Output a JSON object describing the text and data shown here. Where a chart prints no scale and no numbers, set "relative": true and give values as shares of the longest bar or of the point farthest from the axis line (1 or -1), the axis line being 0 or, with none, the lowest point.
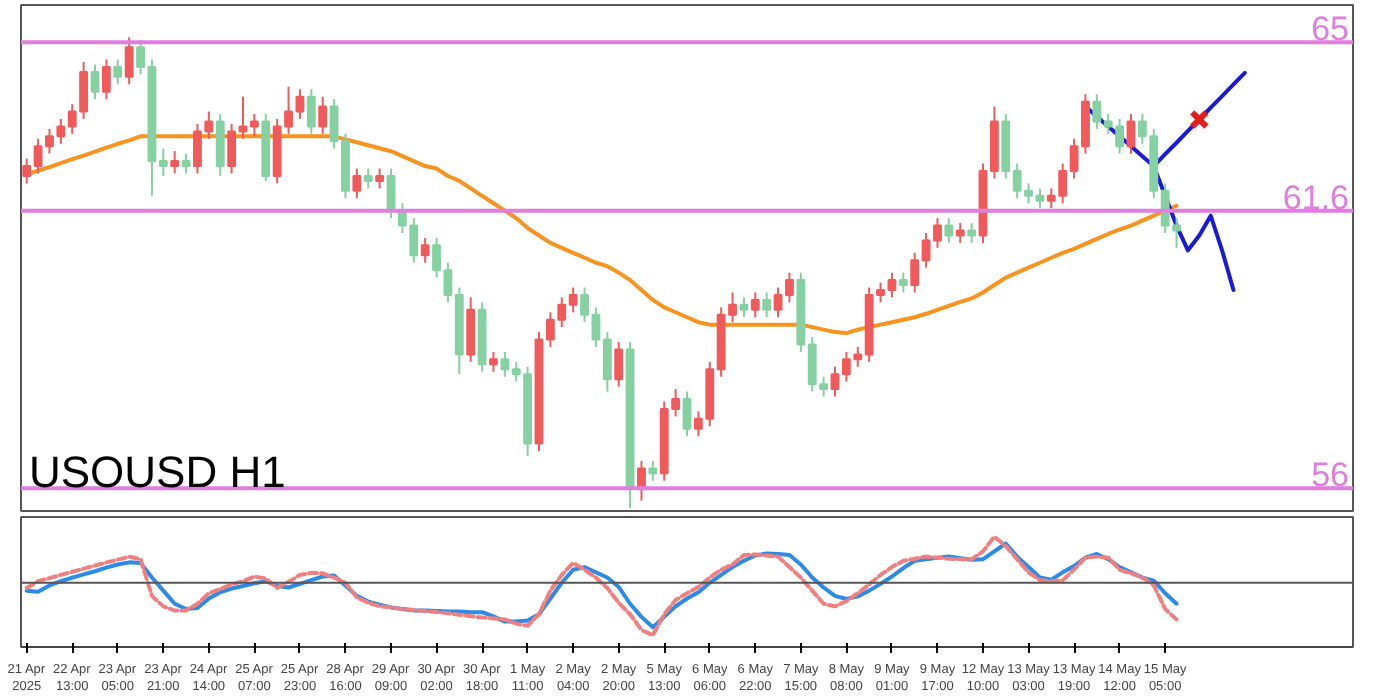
{
  "chart_data": [
    {
      "type": "candlestick",
      "categories": [
        null,
        null,
        null,
        null,
        null,
        null,
        null,
        null,
        null,
        null,
        null,
        null,
        null,
        null,
        null,
        null,
        null,
        null,
        null,
        null,
        null,
        null,
        null,
        null,
        null,
        null,
        null,
        null,
        null,
        null,
        null,
        null,
        null,
        null,
        null,
        null,
        null,
        null,
        null,
        null,
        null,
        null,
        null,
        null,
        null,
        null,
        null,
        null,
        null,
        null,
        null,
        null,
        null,
        null,
        null,
        null,
        null,
        null,
        null,
        null,
        null,
        null,
        null,
        null,
        null,
        null,
        null,
        null,
        null,
        null,
        null,
        null,
        null,
        null,
        null,
        null,
        null,
        null,
        null,
        null,
        null,
        null,
        null,
        null,
        null,
        null,
        null,
        null,
        null,
        null,
        null,
        null,
        null,
        null,
        null,
        null,
        null,
        null,
        null,
        null,
        null,
        null,
        null,
        null,
        null,
        null,
        null,
        null,
        null,
        null,
        null,
        null,
        null,
        null,
        null,
        null,
        null
      ],
      "ohlc": [
        [
          62.3,
          62.65,
          62.15,
          62.5
        ],
        [
          62.5,
          63.05,
          62.35,
          62.9
        ],
        [
          62.9,
          63.25,
          62.75,
          63.1
        ],
        [
          63.1,
          63.45,
          62.95,
          63.3
        ],
        [
          63.3,
          63.75,
          63.15,
          63.6
        ],
        [
          63.6,
          64.6,
          63.45,
          64.4
        ],
        [
          64.4,
          64.55,
          63.85,
          64.0
        ],
        [
          64.0,
          64.65,
          63.85,
          64.5
        ],
        [
          64.5,
          64.65,
          64.15,
          64.3
        ],
        [
          64.3,
          65.1,
          64.15,
          64.9
        ],
        [
          64.9,
          65.05,
          64.35,
          64.5
        ],
        [
          64.5,
          64.65,
          61.9,
          62.6
        ],
        [
          62.6,
          62.85,
          62.3,
          62.5
        ],
        [
          62.5,
          62.8,
          62.35,
          62.6
        ],
        [
          62.6,
          62.75,
          62.35,
          62.5
        ],
        [
          62.5,
          63.35,
          62.35,
          63.2
        ],
        [
          63.2,
          63.6,
          63.05,
          63.4
        ],
        [
          63.4,
          63.55,
          62.3,
          62.5
        ],
        [
          62.5,
          63.35,
          62.35,
          63.2
        ],
        [
          63.2,
          63.9,
          63.05,
          63.3
        ],
        [
          63.3,
          63.55,
          63.1,
          63.4
        ],
        [
          63.4,
          63.55,
          62.2,
          62.3
        ],
        [
          62.3,
          63.45,
          62.15,
          63.3
        ],
        [
          63.3,
          64.1,
          63.15,
          63.6
        ],
        [
          63.6,
          64.05,
          63.45,
          63.9
        ],
        [
          63.9,
          64.05,
          63.15,
          63.3
        ],
        [
          63.3,
          63.9,
          63.15,
          63.7
        ],
        [
          63.7,
          63.85,
          62.85,
          63.0
        ],
        [
          63.0,
          63.15,
          61.85,
          62.0
        ],
        [
          62.0,
          62.45,
          61.85,
          62.3
        ],
        [
          62.3,
          62.45,
          62.05,
          62.2
        ],
        [
          62.2,
          62.45,
          62.05,
          62.3
        ],
        [
          62.3,
          62.45,
          61.45,
          61.6
        ],
        [
          61.6,
          61.75,
          61.15,
          61.3
        ],
        [
          61.3,
          61.45,
          60.55,
          60.7
        ],
        [
          60.7,
          61.05,
          60.55,
          60.9
        ],
        [
          60.9,
          61.05,
          60.25,
          60.4
        ],
        [
          60.4,
          60.55,
          59.75,
          59.9
        ],
        [
          59.9,
          60.05,
          58.3,
          58.7
        ],
        [
          58.7,
          59.85,
          58.55,
          59.6
        ],
        [
          59.6,
          59.75,
          58.35,
          58.5
        ],
        [
          58.5,
          58.75,
          58.35,
          58.6
        ],
        [
          58.6,
          58.75,
          58.25,
          58.4
        ],
        [
          58.4,
          58.55,
          58.15,
          58.3
        ],
        [
          58.3,
          58.45,
          56.65,
          56.9
        ],
        [
          56.9,
          59.15,
          56.75,
          59.0
        ],
        [
          59.0,
          59.55,
          58.85,
          59.4
        ],
        [
          59.4,
          59.85,
          59.25,
          59.7
        ],
        [
          59.7,
          60.05,
          59.55,
          59.9
        ],
        [
          59.9,
          60.05,
          59.35,
          59.5
        ],
        [
          59.5,
          59.65,
          58.85,
          59.0
        ],
        [
          59.0,
          59.15,
          57.95,
          58.2
        ],
        [
          58.2,
          58.95,
          58.05,
          58.8
        ],
        [
          58.8,
          58.95,
          55.6,
          56.0
        ],
        [
          56.0,
          56.55,
          55.75,
          56.4
        ],
        [
          56.4,
          56.55,
          56.15,
          56.3
        ],
        [
          56.3,
          57.75,
          56.15,
          57.6
        ],
        [
          57.6,
          58.0,
          57.45,
          57.8
        ],
        [
          57.8,
          57.95,
          57.05,
          57.2
        ],
        [
          57.2,
          57.55,
          57.05,
          57.4
        ],
        [
          57.4,
          58.55,
          57.25,
          58.4
        ],
        [
          58.4,
          59.65,
          58.25,
          59.5
        ],
        [
          59.5,
          59.95,
          59.35,
          59.7
        ],
        [
          59.7,
          59.85,
          59.45,
          59.6
        ],
        [
          59.6,
          59.95,
          59.45,
          59.8
        ],
        [
          59.8,
          59.95,
          59.45,
          59.6
        ],
        [
          59.6,
          60.05,
          59.45,
          59.9
        ],
        [
          59.9,
          60.35,
          59.75,
          60.2
        ],
        [
          60.2,
          60.35,
          58.75,
          58.9
        ],
        [
          58.9,
          59.05,
          57.95,
          58.1
        ],
        [
          58.1,
          58.25,
          57.85,
          58.0
        ],
        [
          58.0,
          58.45,
          57.85,
          58.3
        ],
        [
          58.3,
          58.75,
          58.15,
          58.6
        ],
        [
          58.6,
          58.85,
          58.45,
          58.7
        ],
        [
          58.7,
          60.05,
          58.55,
          59.9
        ],
        [
          59.9,
          60.15,
          59.75,
          60.0
        ],
        [
          60.0,
          60.35,
          59.85,
          60.2
        ],
        [
          60.2,
          60.35,
          59.95,
          60.1
        ],
        [
          60.1,
          60.75,
          59.95,
          60.6
        ],
        [
          60.6,
          61.15,
          60.45,
          61.0
        ],
        [
          61.0,
          61.45,
          60.85,
          61.3
        ],
        [
          61.3,
          61.45,
          60.95,
          61.1
        ],
        [
          61.1,
          61.35,
          60.95,
          61.2
        ],
        [
          61.2,
          61.35,
          60.95,
          61.1
        ],
        [
          61.1,
          62.55,
          60.95,
          62.4
        ],
        [
          62.4,
          63.7,
          62.25,
          63.4
        ],
        [
          63.4,
          63.55,
          62.25,
          62.4
        ],
        [
          62.4,
          62.55,
          61.85,
          62.0
        ],
        [
          62.0,
          62.15,
          61.75,
          61.9
        ],
        [
          61.9,
          62.05,
          61.65,
          61.8
        ],
        [
          61.8,
          62.05,
          61.65,
          61.9
        ],
        [
          61.9,
          62.55,
          61.75,
          62.4
        ],
        [
          62.4,
          63.05,
          62.25,
          62.9
        ],
        [
          62.9,
          63.95,
          62.75,
          63.8
        ],
        [
          63.8,
          63.95,
          63.25,
          63.4
        ],
        [
          63.4,
          63.55,
          63.15,
          63.3
        ],
        [
          63.3,
          63.45,
          62.75,
          62.9
        ],
        [
          62.9,
          63.55,
          62.75,
          63.4
        ],
        [
          63.4,
          63.55,
          62.95,
          63.1
        ],
        [
          63.1,
          63.25,
          61.85,
          62.0
        ],
        [
          62.0,
          62.15,
          61.15,
          61.3
        ],
        [
          61.3,
          61.45,
          60.85,
          61.2
        ],
        null,
        null,
        null,
        null,
        null,
        null,
        null,
        null,
        null,
        null,
        null,
        null,
        null,
        null,
        null
      ],
      "colors": [
        "#f05a5a",
        "#f05a5a",
        "#f05a5a",
        "#f05a5a",
        "#f05a5a",
        "#f05a5a",
        "#86d1a2",
        "#f05a5a",
        "#86d1a2",
        "#f05a5a",
        "#86d1a2",
        "#86d1a2",
        "#86d1a2",
        "#f05a5a",
        "#86d1a2",
        "#f05a5a",
        "#f05a5a",
        "#86d1a2",
        "#f05a5a",
        "#f05a5a",
        "#f05a5a",
        "#86d1a2",
        "#f05a5a",
        "#f05a5a",
        "#f05a5a",
        "#86d1a2",
        "#f05a5a",
        "#86d1a2",
        "#86d1a2",
        "#f05a5a",
        "#86d1a2",
        "#f05a5a",
        "#86d1a2",
        "#86d1a2",
        "#86d1a2",
        "#f05a5a",
        "#86d1a2",
        "#86d1a2",
        "#86d1a2",
        "#f05a5a",
        "#86d1a2",
        "#f05a5a",
        "#86d1a2",
        "#86d1a2",
        "#86d1a2",
        "#f05a5a",
        "#f05a5a",
        "#f05a5a",
        "#f05a5a",
        "#86d1a2",
        "#86d1a2",
        "#86d1a2",
        "#f05a5a",
        "#86d1a2",
        "#f05a5a",
        "#86d1a2",
        "#f05a5a",
        "#f05a5a",
        "#86d1a2",
        "#f05a5a",
        "#f05a5a",
        "#f05a5a",
        "#f05a5a",
        "#86d1a2",
        "#f05a5a",
        "#86d1a2",
        "#f05a5a",
        "#f05a5a",
        "#86d1a2",
        "#86d1a2",
        "#86d1a2",
        "#f05a5a",
        "#f05a5a",
        "#f05a5a",
        "#f05a5a",
        "#f05a5a",
        "#f05a5a",
        "#86d1a2",
        "#f05a5a",
        "#f05a5a",
        "#f05a5a",
        "#86d1a2",
        "#f05a5a",
        "#86d1a2",
        "#f05a5a",
        "#f05a5a",
        "#86d1a2",
        "#86d1a2",
        "#86d1a2",
        "#86d1a2",
        "#f05a5a",
        "#f05a5a",
        "#f05a5a",
        "#f05a5a",
        "#86d1a2",
        "#86d1a2",
        "#86d1a2",
        "#f05a5a",
        "#86d1a2",
        "#86d1a2",
        "#86d1a2",
        "#86d1a2",
        null,
        null,
        null,
        null,
        null,
        null,
        null,
        null,
        null,
        null,
        null,
        null,
        null,
        null,
        null
      ],
      "series": [
        {
          "type": "line",
          "color": "#f7931e",
          "values": [
            62.33,
            62.41,
            62.48,
            62.56,
            62.64,
            62.71,
            62.79,
            62.87,
            62.95,
            63.02,
            63.1,
            63.1,
            63.1,
            63.1,
            63.1,
            63.1,
            63.1,
            63.1,
            63.1,
            63.1,
            63.1,
            63.1,
            63.1,
            63.1,
            63.1,
            63.1,
            63.1,
            63.1,
            63.04,
            62.98,
            62.92,
            62.86,
            62.8,
            62.7,
            62.6,
            62.5,
            62.45,
            62.3,
            62.2,
            62.05,
            61.9,
            61.75,
            61.6,
            61.45,
            61.25,
            61.1,
            60.95,
            60.85,
            60.75,
            60.65,
            60.55,
            60.48,
            60.35,
            60.2,
            60.0,
            59.8,
            59.65,
            59.55,
            59.45,
            59.35,
            59.3,
            59.3,
            59.3,
            59.3,
            59.3,
            59.3,
            59.3,
            59.3,
            59.3,
            59.25,
            59.2,
            59.15,
            59.13,
            59.2,
            59.25,
            59.3,
            59.35,
            59.4,
            59.45,
            59.52,
            59.6,
            59.68,
            59.76,
            59.83,
            59.95,
            60.1,
            60.25,
            60.35,
            60.45,
            60.55,
            60.65,
            60.75,
            60.83,
            60.93,
            61.03,
            61.13,
            61.22,
            61.3,
            61.4,
            61.5,
            61.6,
            61.7,
            null,
            null,
            null,
            null,
            null,
            null,
            null,
            null,
            null,
            null,
            null,
            null,
            null,
            null,
            null
          ]
        },
        {
          "type": "line",
          "color": "#1a1ad6",
          "values": [
            null,
            null,
            null,
            null,
            null,
            null,
            null,
            null,
            null,
            null,
            null,
            null,
            null,
            null,
            null,
            null,
            null,
            null,
            null,
            null,
            null,
            null,
            null,
            null,
            null,
            null,
            null,
            null,
            null,
            null,
            null,
            null,
            null,
            null,
            null,
            null,
            null,
            null,
            null,
            null,
            null,
            null,
            null,
            null,
            null,
            null,
            null,
            null,
            null,
            null,
            null,
            null,
            null,
            null,
            null,
            null,
            null,
            null,
            null,
            null,
            null,
            null,
            null,
            null,
            null,
            null,
            null,
            null,
            null,
            null,
            null,
            null,
            null,
            null,
            null,
            null,
            null,
            null,
            null,
            null,
            null,
            null,
            null,
            null,
            null,
            null,
            null,
            null,
            null,
            null,
            null,
            null,
            null,
            63.7,
            63.5,
            63.3,
            63.1,
            62.9,
            62.7,
            62.5,
            62.74,
            62.97,
            63.21,
            63.44,
            63.68,
            63.91,
            64.15,
            64.38,
            null,
            null,
            null,
            null,
            null,
            null,
            null,
            null,
            null
          ]
        },
        {
          "type": "line",
          "color": "#1a1ad6",
          "values": [
            null,
            null,
            null,
            null,
            null,
            null,
            null,
            null,
            null,
            null,
            null,
            null,
            null,
            null,
            null,
            null,
            null,
            null,
            null,
            null,
            null,
            null,
            null,
            null,
            null,
            null,
            null,
            null,
            null,
            null,
            null,
            null,
            null,
            null,
            null,
            null,
            null,
            null,
            null,
            null,
            null,
            null,
            null,
            null,
            null,
            null,
            null,
            null,
            null,
            null,
            null,
            null,
            null,
            null,
            null,
            null,
            null,
            null,
            null,
            null,
            null,
            null,
            null,
            null,
            null,
            null,
            null,
            null,
            null,
            null,
            null,
            null,
            null,
            null,
            null,
            null,
            null,
            null,
            null,
            null,
            null,
            null,
            null,
            null,
            null,
            null,
            null,
            null,
            null,
            null,
            null,
            null,
            null,
            null,
            null,
            null,
            null,
            null,
            null,
            62.5,
            61.9,
            61.3,
            60.8,
            61.1,
            61.5,
            60.8,
            60.0,
            null,
            null,
            null,
            null,
            null,
            null,
            null,
            null,
            null,
            null
          ]
        },
        {
          "type": "scatter",
          "color": "#e02020",
          "marker": "cross",
          "values": [
            null,
            null,
            null,
            null,
            null,
            null,
            null,
            null,
            null,
            null,
            null,
            null,
            null,
            null,
            null,
            null,
            null,
            null,
            null,
            null,
            null,
            null,
            null,
            null,
            null,
            null,
            null,
            null,
            null,
            null,
            null,
            null,
            null,
            null,
            null,
            null,
            null,
            null,
            null,
            null,
            null,
            null,
            null,
            null,
            null,
            null,
            null,
            null,
            null,
            null,
            null,
            null,
            null,
            null,
            null,
            null,
            null,
            null,
            null,
            null,
            null,
            null,
            null,
            null,
            null,
            null,
            null,
            null,
            null,
            null,
            null,
            null,
            null,
            null,
            null,
            null,
            null,
            null,
            null,
            null,
            null,
            null,
            null,
            null,
            null,
            null,
            null,
            null,
            null,
            null,
            null,
            null,
            null,
            null,
            null,
            null,
            null,
            null,
            null,
            null,
            null,
            null,
            null,
            63.44,
            null,
            null,
            null,
            null,
            null,
            null,
            null,
            null,
            null,
            null,
            null,
            null,
            null
          ]
        }
      ],
      "ylim": [
        55.5,
        65.75
      ],
      "tick_labels": false,
      "ref_lines": [
        {
          "axis": "y",
          "value": 65,
          "label": "65",
          "color": "#e07ee0"
        },
        {
          "axis": "y",
          "value": 61.6,
          "label": "61.6",
          "color": "#e07ee0"
        },
        {
          "axis": "y",
          "value": 56,
          "label": "56",
          "color": "#e07ee0"
        }
      ],
      "annotations": [
        "USOUSD H1"
      ]
    },
    {
      "type": "line",
      "relative": true,
      "tick_labels": "x",
      "categories": [
        "21 Apr 2025",
        null,
        null,
        null,
        "22 Apr 13:00",
        null,
        null,
        null,
        "23 Apr 05:00",
        null,
        null,
        null,
        "23 Apr 21:00",
        null,
        null,
        null,
        "24 Apr 14:00",
        null,
        null,
        null,
        "25 Apr 07:00",
        null,
        null,
        null,
        "25 Apr 23:00",
        null,
        null,
        null,
        "28 Apr 16:00",
        null,
        null,
        null,
        "29 Apr 09:00",
        null,
        null,
        null,
        "30 Apr 02:00",
        null,
        null,
        null,
        "30 Apr 18:00",
        null,
        null,
        null,
        "1 May 11:00",
        null,
        null,
        null,
        "2 May 04:00",
        null,
        null,
        null,
        "2 May 20:00",
        null,
        null,
        null,
        "5 May 13:00",
        null,
        null,
        null,
        "6 May 06:00",
        null,
        null,
        null,
        "6 May 22:00",
        null,
        null,
        null,
        "7 May 15:00",
        null,
        null,
        null,
        "8 May 08:00",
        null,
        null,
        null,
        "9 May 01:00",
        null,
        null,
        null,
        "9 May 17:00",
        null,
        null,
        null,
        "12 May 10:00",
        null,
        null,
        null,
        "13 May 03:00",
        null,
        null,
        null,
        "13 May 19:00",
        null,
        null,
        null,
        "14 May 12:00",
        null,
        null,
        null,
        "15 May 05:00",
        null,
        null,
        null,
        null,
        null,
        null,
        null,
        null,
        null,
        null,
        null,
        null,
        null,
        null,
        null,
        null
      ],
      "series": [
        {
          "color": "#2b8be6",
          "line_style": "solid",
          "values": [
            -0.15,
            -0.17,
            -0.05,
            0.03,
            0.1,
            0.16,
            0.22,
            0.29,
            0.35,
            0.39,
            0.38,
            0.1,
            -0.15,
            -0.4,
            -0.5,
            -0.48,
            -0.3,
            -0.18,
            -0.11,
            -0.06,
            -0.01,
            0.03,
            -0.06,
            -0.09,
            -0.02,
            0.05,
            0.12,
            0.14,
            -0.05,
            -0.25,
            -0.36,
            -0.42,
            -0.47,
            -0.5,
            -0.53,
            -0.53,
            -0.54,
            -0.55,
            -0.55,
            -0.56,
            -0.56,
            -0.64,
            -0.74,
            -0.74,
            -0.72,
            -0.6,
            -0.3,
            0.0,
            0.25,
            0.3,
            0.2,
            0.1,
            -0.08,
            -0.4,
            -0.65,
            -0.85,
            -0.65,
            -0.45,
            -0.3,
            -0.18,
            0.0,
            0.15,
            0.3,
            0.42,
            0.52,
            0.56,
            0.55,
            0.53,
            0.35,
            0.1,
            -0.09,
            -0.25,
            -0.31,
            -0.26,
            -0.15,
            -0.02,
            0.12,
            0.28,
            0.42,
            0.45,
            0.48,
            0.5,
            0.47,
            0.44,
            0.45,
            0.6,
            0.75,
            0.5,
            0.3,
            0.1,
            0.06,
            0.2,
            0.32,
            0.48,
            0.55,
            0.45,
            0.3,
            0.2,
            0.1,
            0.04,
            -0.2,
            -0.4,
            null,
            null,
            null,
            null,
            null,
            null,
            null,
            null,
            null,
            null,
            null,
            null,
            null,
            null,
            null
          ]
        },
        {
          "color": "#f08080",
          "line_style": "dashed",
          "values": [
            -0.1,
            0.03,
            0.09,
            0.15,
            0.21,
            0.27,
            0.33,
            0.39,
            0.44,
            0.5,
            0.45,
            -0.25,
            -0.45,
            -0.53,
            -0.53,
            -0.4,
            -0.2,
            -0.12,
            -0.03,
            0.03,
            0.12,
            0.08,
            -0.1,
            0.02,
            0.15,
            0.19,
            0.18,
            0.1,
            0.0,
            -0.28,
            -0.38,
            -0.45,
            -0.47,
            -0.5,
            -0.52,
            -0.54,
            -0.56,
            -0.58,
            -0.61,
            -0.64,
            -0.66,
            -0.68,
            -0.7,
            -0.78,
            -0.82,
            -0.6,
            -0.15,
            0.15,
            0.38,
            0.25,
            0.1,
            -0.1,
            -0.38,
            -0.6,
            -0.9,
            -1,
            -0.6,
            -0.33,
            -0.2,
            -0.08,
            0.1,
            0.25,
            0.35,
            0.53,
            0.54,
            0.52,
            0.5,
            0.3,
            0.1,
            -0.15,
            -0.4,
            -0.45,
            -0.35,
            -0.2,
            -0.03,
            0.15,
            0.3,
            0.42,
            0.46,
            0.5,
            0.48,
            0.46,
            0.45,
            0.45,
            0.6,
            0.88,
            0.7,
            0.45,
            0.2,
            0.05,
            0.03,
            0.05,
            0.25,
            0.48,
            0.5,
            0.48,
            0.25,
            0.18,
            0.1,
            -0.05,
            -0.5,
            -0.7,
            null,
            null,
            null,
            null,
            null,
            null,
            null,
            null,
            null,
            null,
            null,
            null,
            null,
            null,
            null
          ]
        }
      ],
      "ref_lines": [
        {
          "axis": "y",
          "value": 0,
          "color": "#555555"
        }
      ]
    }
  ]
}
